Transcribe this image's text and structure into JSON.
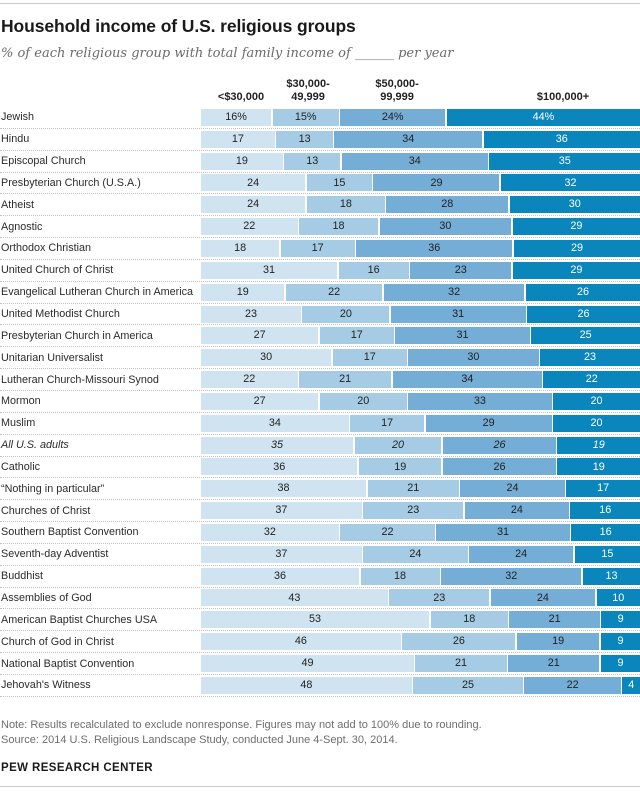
{
  "header": {
    "title": "Household income of U.S. religious groups",
    "subtitle": "% of each religious group with total family income of ______ per year"
  },
  "columns": [
    "<$30,000",
    "$30,000-\n49,999",
    "$50,000-\n99,999",
    "$100,000+"
  ],
  "colors": {
    "segments": [
      "#d0e3f0",
      "#a5cce4",
      "#74add5",
      "#0b86bc"
    ],
    "segment_text": [
      "#222222",
      "#222222",
      "#222222",
      "#ffffff"
    ],
    "rule": "#c9c9c9",
    "separator": "#c2c2c2",
    "note_text": "#6e6e6e",
    "subtitle_text": "#6b6b6b"
  },
  "chart_data": {
    "type": "bar",
    "stacked": true,
    "orientation": "horizontal",
    "unit": "%",
    "value_suffix_first_row": "%",
    "emphasized_category": "All U.S. adults",
    "title": "Household income of U.S. religious groups",
    "xlabel": "% of each religious group with total family income of ______ per year",
    "xlim": [
      0,
      100
    ],
    "grid": false,
    "legend_position": "top",
    "categories": [
      "Jewish",
      "Hindu",
      "Episcopal Church",
      "Presbyterian Church (U.S.A.)",
      "Atheist",
      "Agnostic",
      "Orthodox Christian",
      "United Church of Christ",
      "Evangelical Lutheran Church in America",
      "United Methodist Church",
      "Presbyterian Church in America",
      "Unitarian Universalist",
      "Lutheran Church-Missouri Synod",
      "Mormon",
      "Muslim",
      "All U.S. adults",
      "Catholic",
      "“Nothing in particular”",
      "Churches of Christ",
      "Southern Baptist Convention",
      "Seventh-day Adventist",
      "Buddhist",
      "Assemblies of God",
      "American Baptist Churches USA",
      "Church of God in Christ",
      "National Baptist Convention",
      "Jehovah's Witness"
    ],
    "series": [
      {
        "name": "<$30,000",
        "values": [
          16,
          17,
          19,
          24,
          24,
          22,
          18,
          31,
          19,
          23,
          27,
          30,
          22,
          27,
          34,
          35,
          36,
          38,
          37,
          32,
          37,
          36,
          43,
          53,
          46,
          49,
          48
        ]
      },
      {
        "name": "$30,000-49,999",
        "values": [
          15,
          13,
          13,
          15,
          18,
          18,
          17,
          16,
          22,
          20,
          17,
          17,
          21,
          20,
          17,
          20,
          19,
          21,
          23,
          22,
          24,
          18,
          23,
          18,
          26,
          21,
          25
        ]
      },
      {
        "name": "$50,000-99,999",
        "values": [
          24,
          34,
          34,
          29,
          28,
          30,
          36,
          23,
          32,
          31,
          31,
          30,
          34,
          33,
          29,
          26,
          26,
          24,
          24,
          31,
          24,
          32,
          24,
          21,
          19,
          21,
          22
        ]
      },
      {
        "name": "$100,000+",
        "values": [
          44,
          36,
          35,
          32,
          30,
          29,
          29,
          29,
          26,
          26,
          25,
          23,
          22,
          20,
          20,
          19,
          19,
          17,
          16,
          16,
          15,
          13,
          10,
          9,
          9,
          9,
          4
        ]
      }
    ]
  },
  "footer": {
    "note": "Note: Results recalculated to exclude nonresponse. Figures may not add to 100% due to rounding.",
    "source": "Source: 2014 U.S. Religious Landscape Study, conducted June 4-Sept. 30, 2014.",
    "brand": "PEW RESEARCH CENTER"
  }
}
